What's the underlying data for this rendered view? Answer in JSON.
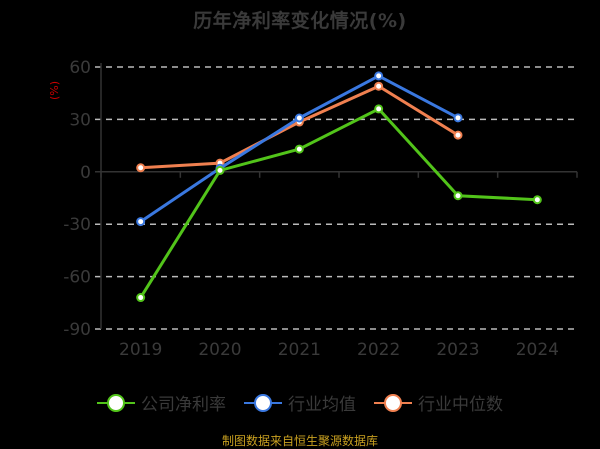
{
  "title": "历年净利率变化情况(%)",
  "unit_label": "(%)",
  "source": "制图数据来自恒生聚源数据库",
  "colors": {
    "background": "#000000",
    "axis_text": "#3a3a3a",
    "grid": "#bbbbbb",
    "unit": "#cc0000",
    "source": "#c8a020"
  },
  "legend": [
    {
      "label": "公司净利率",
      "color": "#52c41a"
    },
    {
      "label": "行业均值",
      "color": "#3a78e0"
    },
    {
      "label": "行业中位数",
      "color": "#f08050"
    }
  ],
  "chart_data": {
    "type": "line",
    "title": "历年净利率变化情况(%)",
    "xlabel": "",
    "ylabel": "(%)",
    "categories": [
      "2019",
      "2020",
      "2021",
      "2022",
      "2023",
      "2024"
    ],
    "yticks": [
      60,
      30,
      0,
      -30,
      -60,
      -90
    ],
    "ylim": [
      -90,
      60
    ],
    "grid": true,
    "legend_position": "bottom",
    "series": [
      {
        "name": "公司净利率",
        "color": "#52c41a",
        "values": [
          -72.0,
          0.8,
          13.0,
          36.0,
          -13.7,
          -16.0
        ]
      },
      {
        "name": "行业均值",
        "color": "#3a78e0",
        "values": [
          -28.5,
          2.0,
          30.8,
          54.9,
          30.9,
          null
        ]
      },
      {
        "name": "行业中位数",
        "color": "#f08050",
        "values": [
          2.3,
          5.0,
          28.5,
          49.0,
          21.0,
          null
        ]
      }
    ]
  }
}
